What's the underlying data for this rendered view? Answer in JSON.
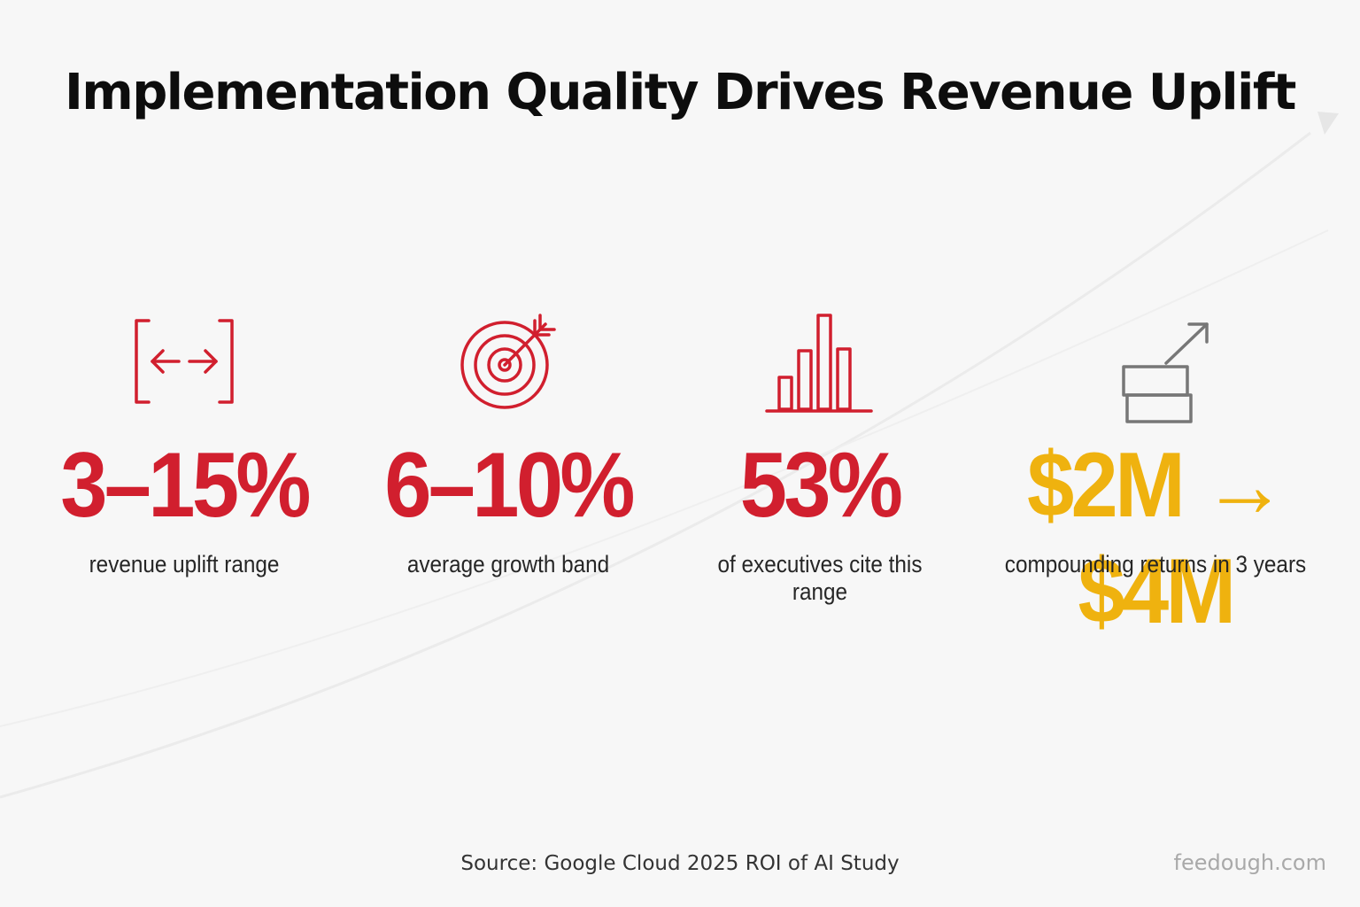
{
  "title": "Implementation Quality Drives Revenue Uplift",
  "colors": {
    "accent_red": "#d11f2e",
    "accent_gold": "#efb20f",
    "icon_gray": "#777777",
    "text_dark": "#0d0d0d",
    "background": "#f7f7f7"
  },
  "stats": [
    {
      "icon": "range-brackets-icon",
      "value": "3–15%",
      "description": "revenue uplift range",
      "color": "#d11f2e"
    },
    {
      "icon": "target-icon",
      "value": "6–10%",
      "description": "average growth band",
      "color": "#d11f2e"
    },
    {
      "icon": "bar-chart-icon",
      "value": "53%",
      "description": "of executives cite this range",
      "color": "#d11f2e"
    },
    {
      "icon": "growth-arrow-icon",
      "value": "$2M → $4M",
      "description": "compounding returns in 3 years",
      "color": "#efb20f"
    }
  ],
  "footer": {
    "source": "Source:  Google Cloud 2025 ROI of AI Study",
    "site": "feedough.com"
  }
}
